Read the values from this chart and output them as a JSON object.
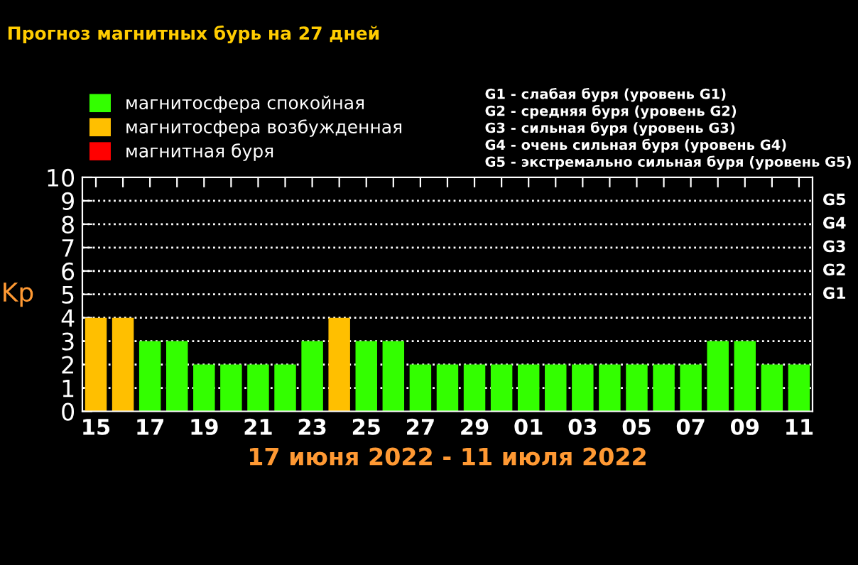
{
  "chart_data": {
    "type": "bar",
    "title": "Прогноз магнитных бурь на 27 дней",
    "xlabel": "17 июня 2022 - 11 июля 2022",
    "ylabel": "Kp",
    "categories": [
      "15",
      null,
      "17",
      null,
      "19",
      null,
      "21",
      null,
      "23",
      null,
      "25",
      null,
      "27",
      null,
      "29",
      null,
      "01",
      null,
      "03",
      null,
      "05",
      null,
      "07",
      null,
      "09",
      null,
      "11"
    ],
    "series": [
      {
        "name": "магнитосфера спокойная",
        "color": "#33ff00",
        "values": [
          null,
          null,
          3,
          3,
          2,
          2,
          2,
          2,
          3,
          null,
          3,
          3,
          2,
          2,
          2,
          2,
          2,
          2,
          2,
          2,
          2,
          2,
          2,
          3,
          3,
          2,
          2
        ]
      },
      {
        "name": "магнитосфера возбужденная",
        "color": "#ffbf00",
        "values": [
          4,
          4,
          null,
          null,
          null,
          null,
          null,
          null,
          null,
          4,
          null,
          null,
          null,
          null,
          null,
          null,
          null,
          null,
          null,
          null,
          null,
          null,
          null,
          null,
          null,
          null,
          null
        ]
      },
      {
        "name": "магнитная буря",
        "color": "#ff0000",
        "values": [
          null,
          null,
          null,
          null,
          null,
          null,
          null,
          null,
          null,
          null,
          null,
          null,
          null,
          null,
          null,
          null,
          null,
          null,
          null,
          null,
          null,
          null,
          null,
          null,
          null,
          null,
          null
        ]
      }
    ],
    "ylim": [
      0,
      10
    ],
    "yticks": [
      0,
      1,
      2,
      3,
      4,
      5,
      6,
      7,
      8,
      9,
      10
    ],
    "grid": "y",
    "legend": "top left",
    "annotations": [
      "G1 - слабая буря (уровень G1)",
      "G2 - средняя буря (уровень G2)",
      "G3 - сильная буря (уровень G3)",
      "G4 - очень сильная буря (уровень G4)",
      "G5 - экстремально сильная буря (уровень G5)",
      "G1",
      "G2",
      "G3",
      "G4",
      "G5"
    ]
  }
}
